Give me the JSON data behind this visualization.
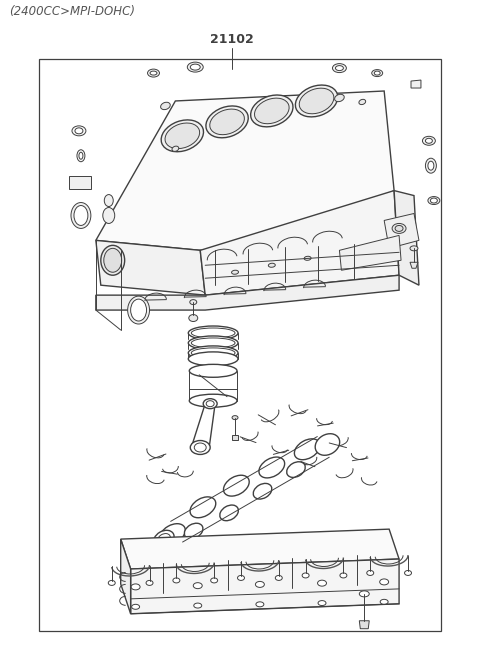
{
  "title_top_left": "(2400CC>MPI-DOHC)",
  "part_number": "21102",
  "background_color": "#ffffff",
  "border_color": "#404040",
  "line_color": "#404040",
  "title_fontsize": 8.5,
  "part_number_fontsize": 9,
  "fig_width": 4.8,
  "fig_height": 6.55,
  "dpi": 100
}
